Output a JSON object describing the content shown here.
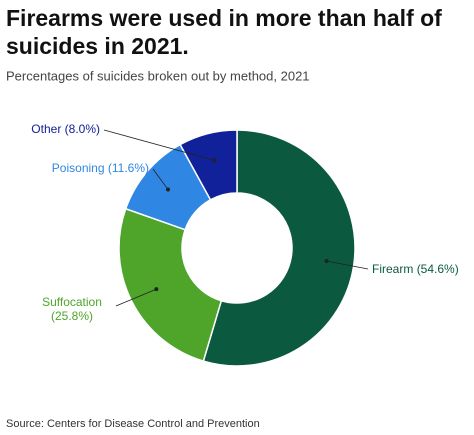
{
  "chart_data": {
    "type": "donut",
    "title_lines": [
      "Firearms were used in more than half of",
      "suicides in 2021."
    ],
    "subtitle": "Percentages of suicides broken out by method, 2021",
    "categories": [
      "Firearm",
      "Suffocation",
      "Poisoning",
      "Other"
    ],
    "values": [
      54.6,
      25.8,
      11.6,
      8.0
    ],
    "value_labels": [
      "(54.6%)",
      "(25.8%)",
      "(11.6%)",
      "(8.0%)"
    ],
    "colors": [
      "#0b5a40",
      "#4ea52a",
      "#2f86e3",
      "#10219a"
    ],
    "source": "Source: Centers for Disease Control and Prevention"
  }
}
